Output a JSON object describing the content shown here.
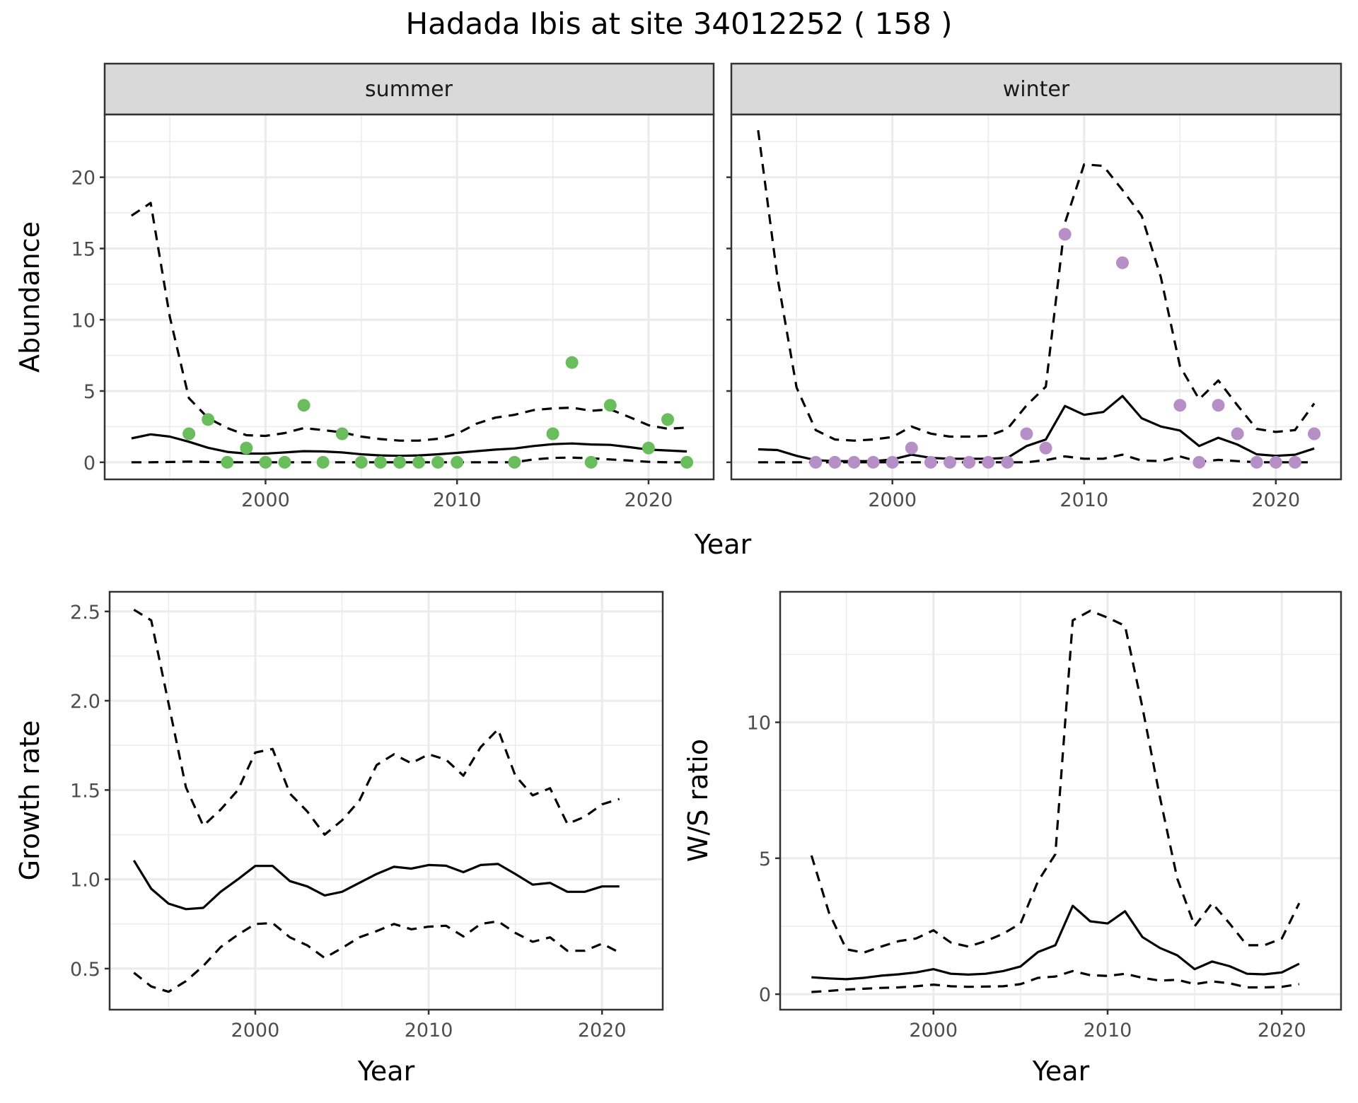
{
  "chart_data": [
    {
      "type": "scatter",
      "panel": "abundance",
      "title": "Hadada Ibis at site 34012252 ( 158 )",
      "xlabel": "Year",
      "ylabel": "Abundance",
      "xticks": [
        2000,
        2010,
        2020
      ],
      "yticks": [
        0,
        5,
        10,
        15,
        20
      ],
      "xlim": [
        1991.6,
        2023.4
      ],
      "ylim": [
        -1.2,
        24.4
      ],
      "grid": true,
      "facets": [
        {
          "label": "summer",
          "point_color": "#6ABD5C",
          "points": {
            "x": [
              1996,
              1997,
              1998,
              1999,
              2000,
              2001,
              2002,
              2003,
              2004,
              2005,
              2006,
              2007,
              2008,
              2009,
              2010,
              2013,
              2015,
              2016,
              2017,
              2018,
              2020,
              2021,
              2022
            ],
            "y": [
              2,
              3,
              0,
              1,
              0,
              0,
              4,
              0,
              2,
              0,
              0,
              0,
              0,
              0,
              0,
              0,
              2,
              7,
              0,
              4,
              1,
              3,
              0
            ]
          },
          "years": [
            1993,
            1994,
            1995,
            1996,
            1997,
            1998,
            1999,
            2000,
            2001,
            2002,
            2003,
            2004,
            2005,
            2006,
            2007,
            2008,
            2009,
            2010,
            2011,
            2012,
            2013,
            2014,
            2015,
            2016,
            2017,
            2018,
            2019,
            2020,
            2021,
            2022
          ],
          "series": [
            {
              "name": "estimate",
              "style": "solid",
              "values": [
                1.68,
                1.96,
                1.8,
                1.44,
                1.02,
                0.73,
                0.61,
                0.61,
                0.69,
                0.78,
                0.76,
                0.69,
                0.56,
                0.48,
                0.45,
                0.48,
                0.56,
                0.66,
                0.78,
                0.89,
                0.97,
                1.14,
                1.27,
                1.32,
                1.25,
                1.22,
                1.06,
                0.89,
                0.83,
                0.76
              ]
            },
            {
              "name": "upper",
              "style": "dashed",
              "values": [
                17.3,
                18.2,
                10.2,
                4.5,
                3.1,
                2.4,
                1.9,
                1.85,
                2.05,
                2.4,
                2.26,
                2.1,
                1.8,
                1.63,
                1.52,
                1.52,
                1.65,
                2.0,
                2.7,
                3.13,
                3.33,
                3.66,
                3.78,
                3.83,
                3.61,
                3.71,
                3.17,
                2.6,
                2.35,
                2.43
              ]
            },
            {
              "name": "lower",
              "style": "dashed",
              "values": [
                0,
                0,
                0.02,
                0.05,
                0.02,
                0,
                0,
                0,
                0,
                0,
                0,
                0,
                0,
                0,
                0,
                0,
                0,
                0,
                0,
                0,
                0,
                0.2,
                0.31,
                0.33,
                0.28,
                0.2,
                0.12,
                0.03,
                0,
                0
              ]
            }
          ]
        },
        {
          "label": "winter",
          "point_color": "#B58FC6",
          "points": {
            "x": [
              1996,
              1997,
              1998,
              1999,
              2000,
              2001,
              2002,
              2003,
              2004,
              2005,
              2006,
              2007,
              2008,
              2009,
              2012,
              2015,
              2016,
              2017,
              2018,
              2019,
              2020,
              2021,
              2022
            ],
            "y": [
              0,
              0,
              0,
              0,
              0,
              1,
              0,
              0,
              0,
              0,
              0,
              2,
              1,
              16,
              14,
              4,
              0,
              4,
              2,
              0,
              0,
              0,
              2
            ]
          },
          "years": [
            1993,
            1994,
            1995,
            1996,
            1997,
            1998,
            1999,
            2000,
            2001,
            2002,
            2003,
            2004,
            2005,
            2006,
            2007,
            2008,
            2009,
            2010,
            2011,
            2012,
            2013,
            2014,
            2015,
            2016,
            2017,
            2018,
            2019,
            2020,
            2021,
            2022
          ],
          "series": [
            {
              "name": "estimate",
              "style": "solid",
              "values": [
                0.91,
                0.86,
                0.45,
                0.15,
                0.08,
                0.08,
                0.08,
                0.2,
                0.53,
                0.31,
                0.25,
                0.25,
                0.25,
                0.31,
                1.14,
                1.6,
                3.95,
                3.33,
                3.53,
                4.65,
                3.09,
                2.51,
                2.23,
                1.14,
                1.72,
                1.24,
                0.56,
                0.45,
                0.53,
                0.97
              ]
            },
            {
              "name": "upper",
              "style": "dashed",
              "values": [
                23.3,
                13.0,
                5.25,
                2.26,
                1.6,
                1.52,
                1.6,
                1.77,
                2.51,
                2.01,
                1.8,
                1.8,
                1.85,
                2.34,
                3.99,
                5.31,
                16.8,
                20.9,
                20.8,
                19.1,
                17.3,
                13.0,
                6.74,
                4.42,
                5.74,
                3.99,
                2.34,
                2.13,
                2.26,
                4.13
              ]
            },
            {
              "name": "lower",
              "style": "dashed",
              "values": [
                0,
                0,
                0,
                0,
                0,
                0,
                0,
                0,
                0,
                0,
                0,
                0,
                0,
                0,
                0,
                0.15,
                0.41,
                0.25,
                0.25,
                0.53,
                0.12,
                0.08,
                0.41,
                0.03,
                0.17,
                0.08,
                0,
                0,
                0,
                0
              ]
            }
          ]
        }
      ]
    },
    {
      "type": "line",
      "panel": "growth",
      "xlabel": "Year",
      "ylabel": "Growth rate",
      "xticks": [
        2000,
        2010,
        2020
      ],
      "yticks": [
        "0.5",
        "1.0",
        "1.5",
        "2.0",
        "2.5"
      ],
      "xlim": [
        1991.6,
        2023.5
      ],
      "ylim": [
        0.27,
        2.61
      ],
      "grid": true,
      "x": [
        1993,
        1994,
        1995,
        1996,
        1997,
        1998,
        1999,
        2000,
        2001,
        2002,
        2003,
        2004,
        2005,
        2006,
        2007,
        2008,
        2009,
        2010,
        2011,
        2012,
        2013,
        2014,
        2015,
        2016,
        2017,
        2018,
        2019,
        2020,
        2021
      ],
      "series": [
        {
          "name": "estimate",
          "style": "solid",
          "values": [
            1.106,
            0.947,
            0.864,
            0.833,
            0.84,
            0.93,
            1.0,
            1.075,
            1.075,
            0.99,
            0.96,
            0.91,
            0.93,
            0.98,
            1.03,
            1.07,
            1.06,
            1.08,
            1.076,
            1.04,
            1.08,
            1.086,
            1.03,
            0.97,
            0.98,
            0.93,
            0.93,
            0.96,
            0.96
          ]
        },
        {
          "name": "upper",
          "style": "dashed",
          "values": [
            2.51,
            2.45,
            1.985,
            1.515,
            1.3,
            1.39,
            1.5,
            1.71,
            1.73,
            1.48,
            1.38,
            1.25,
            1.33,
            1.44,
            1.64,
            1.7,
            1.65,
            1.7,
            1.67,
            1.58,
            1.74,
            1.84,
            1.58,
            1.47,
            1.51,
            1.31,
            1.35,
            1.42,
            1.45
          ]
        },
        {
          "name": "lower",
          "style": "dashed",
          "values": [
            0.477,
            0.4,
            0.37,
            0.43,
            0.515,
            0.62,
            0.69,
            0.75,
            0.755,
            0.675,
            0.63,
            0.56,
            0.615,
            0.675,
            0.71,
            0.75,
            0.72,
            0.735,
            0.74,
            0.68,
            0.75,
            0.765,
            0.7,
            0.65,
            0.675,
            0.6,
            0.6,
            0.64,
            0.59
          ]
        }
      ]
    },
    {
      "type": "line",
      "panel": "ws_ratio",
      "xlabel": "Year",
      "ylabel": "W/S ratio",
      "xticks": [
        2000,
        2010,
        2020
      ],
      "yticks": [
        0,
        5,
        10
      ],
      "xlim": [
        1991.2,
        2023.4
      ],
      "ylim": [
        -0.57,
        14.8
      ],
      "grid": true,
      "x": [
        1993,
        1994,
        1995,
        1996,
        1997,
        1998,
        1999,
        2000,
        2001,
        2002,
        2003,
        2004,
        2005,
        2006,
        2007,
        2008,
        2009,
        2010,
        2011,
        2012,
        2013,
        2014,
        2015,
        2016,
        2017,
        2018,
        2019,
        2020,
        2021
      ],
      "series": [
        {
          "name": "estimate",
          "style": "solid",
          "values": [
            0.62,
            0.58,
            0.55,
            0.6,
            0.68,
            0.73,
            0.8,
            0.92,
            0.75,
            0.72,
            0.75,
            0.85,
            1.02,
            1.55,
            1.8,
            3.25,
            2.68,
            2.6,
            3.05,
            2.1,
            1.7,
            1.43,
            0.92,
            1.2,
            1.03,
            0.75,
            0.73,
            0.8,
            1.12
          ]
        },
        {
          "name": "upper",
          "style": "dashed",
          "values": [
            5.1,
            3.0,
            1.65,
            1.53,
            1.75,
            1.95,
            2.05,
            2.35,
            1.9,
            1.75,
            1.95,
            2.22,
            2.6,
            4.15,
            5.15,
            13.75,
            14.1,
            13.85,
            13.55,
            10.55,
            7.25,
            4.25,
            2.5,
            3.35,
            2.6,
            1.8,
            1.8,
            2.05,
            3.35
          ]
        },
        {
          "name": "lower",
          "style": "dashed",
          "values": [
            0.08,
            0.12,
            0.17,
            0.2,
            0.23,
            0.25,
            0.29,
            0.35,
            0.29,
            0.27,
            0.28,
            0.29,
            0.37,
            0.6,
            0.65,
            0.85,
            0.7,
            0.67,
            0.75,
            0.6,
            0.5,
            0.53,
            0.37,
            0.47,
            0.4,
            0.25,
            0.25,
            0.27,
            0.37
          ]
        }
      ]
    }
  ]
}
